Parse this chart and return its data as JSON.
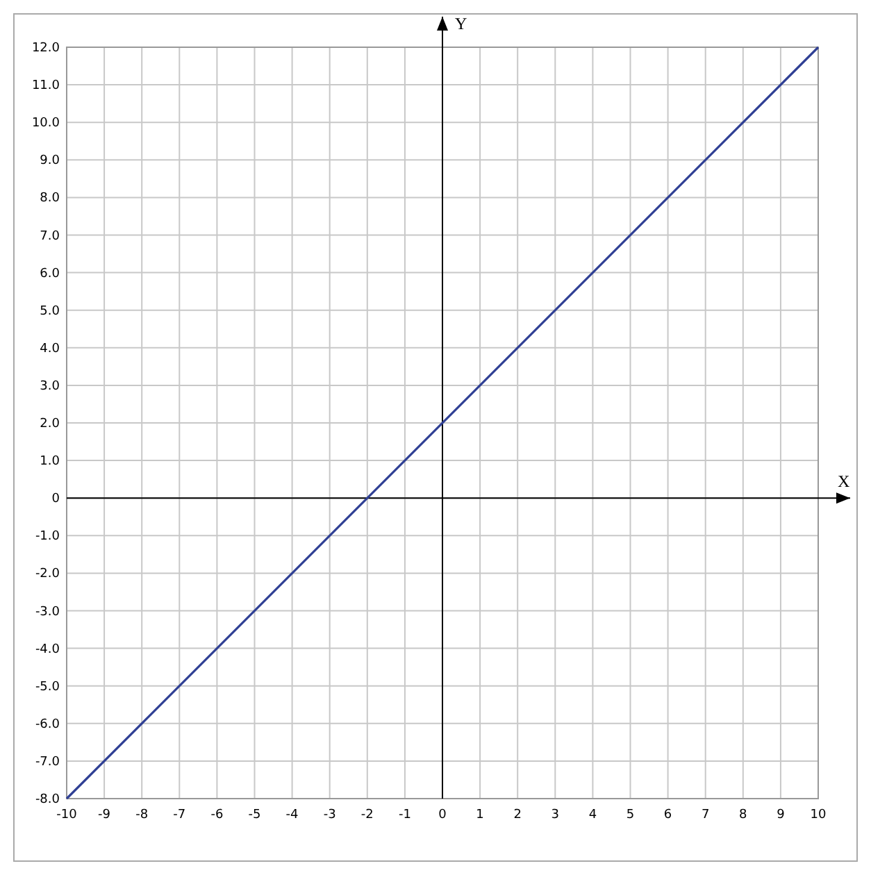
{
  "chart_data": {
    "type": "line",
    "xlabel": "X",
    "ylabel": "Y",
    "x": [
      -10,
      10
    ],
    "series": [
      {
        "color": "#2f3f94",
        "values": [
          -8,
          12
        ]
      }
    ],
    "xlim": [
      -10,
      10
    ],
    "ylim": [
      -8,
      12
    ],
    "xticks": [
      -10,
      -9,
      -8,
      -7,
      -6,
      -5,
      -4,
      -3,
      -2,
      -1,
      0,
      1,
      2,
      3,
      4,
      5,
      6,
      7,
      8,
      9,
      10
    ],
    "yticks": [
      {
        "value": -8,
        "label": "-8.0"
      },
      {
        "value": -7,
        "label": "-7.0"
      },
      {
        "value": -6,
        "label": "-6.0"
      },
      {
        "value": -5,
        "label": "-5.0"
      },
      {
        "value": -4,
        "label": "-4.0"
      },
      {
        "value": -3,
        "label": "-3.0"
      },
      {
        "value": -2,
        "label": "-2.0"
      },
      {
        "value": -1,
        "label": "-1.0"
      },
      {
        "value": 0,
        "label": "0"
      },
      {
        "value": 1,
        "label": "1.0"
      },
      {
        "value": 2,
        "label": "2.0"
      },
      {
        "value": 3,
        "label": "3.0"
      },
      {
        "value": 4,
        "label": "4.0"
      },
      {
        "value": 5,
        "label": "5.0"
      },
      {
        "value": 6,
        "label": "6.0"
      },
      {
        "value": 7,
        "label": "7.0"
      },
      {
        "value": 8,
        "label": "8.0"
      },
      {
        "value": 9,
        "label": "9.0"
      },
      {
        "value": 10,
        "label": "10.0"
      },
      {
        "value": 11,
        "label": "11.0"
      },
      {
        "value": 12,
        "label": "12.0"
      }
    ],
    "grid": true,
    "marker": "none",
    "line_style": "solid"
  }
}
